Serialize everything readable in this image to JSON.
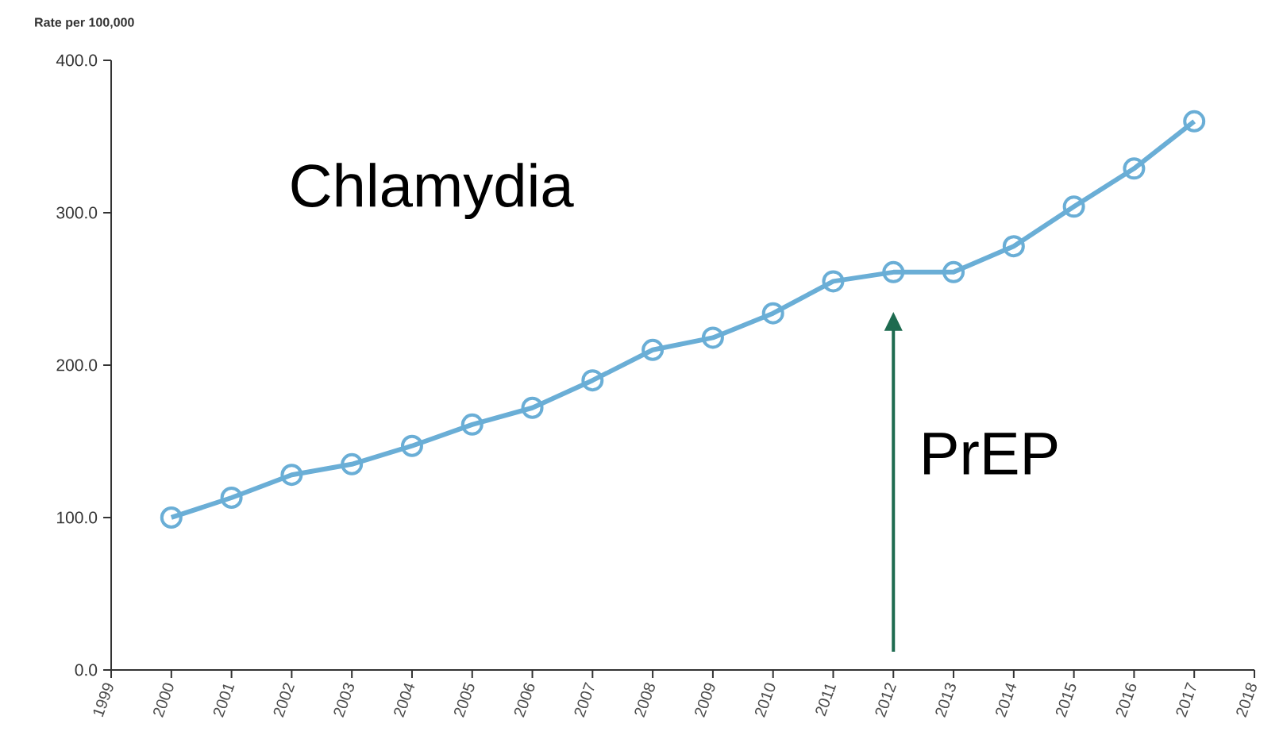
{
  "chart_data": {
    "type": "line",
    "title": "Chlamydia",
    "ylabel": "Rate per 100,000",
    "x": [
      2000,
      2001,
      2002,
      2003,
      2004,
      2005,
      2006,
      2007,
      2008,
      2009,
      2010,
      2011,
      2012,
      2013,
      2014,
      2015,
      2016,
      2017
    ],
    "values": [
      100,
      113,
      128,
      135,
      147,
      161,
      172,
      190,
      210,
      218,
      234,
      255,
      261,
      261,
      278,
      304,
      329,
      360
    ],
    "color": "#6aaed6",
    "marker": "circle",
    "line_style": "solid",
    "xlim": [
      1999,
      2018
    ],
    "xticks": [
      1999,
      2000,
      2001,
      2002,
      2003,
      2004,
      2005,
      2006,
      2007,
      2008,
      2009,
      2010,
      2011,
      2012,
      2013,
      2014,
      2015,
      2016,
      2017,
      2018
    ],
    "ylim": [
      0,
      400
    ],
    "yticks": [
      {
        "value": 0,
        "label": "0.0"
      },
      {
        "value": 100,
        "label": "100.0"
      },
      {
        "value": 200,
        "label": "200.0"
      },
      {
        "value": 300,
        "label": "300.0"
      },
      {
        "value": 400,
        "label": "400.0"
      }
    ],
    "annotations": [
      {
        "text": "PrEP",
        "x": 2012,
        "y": 261
      }
    ]
  }
}
